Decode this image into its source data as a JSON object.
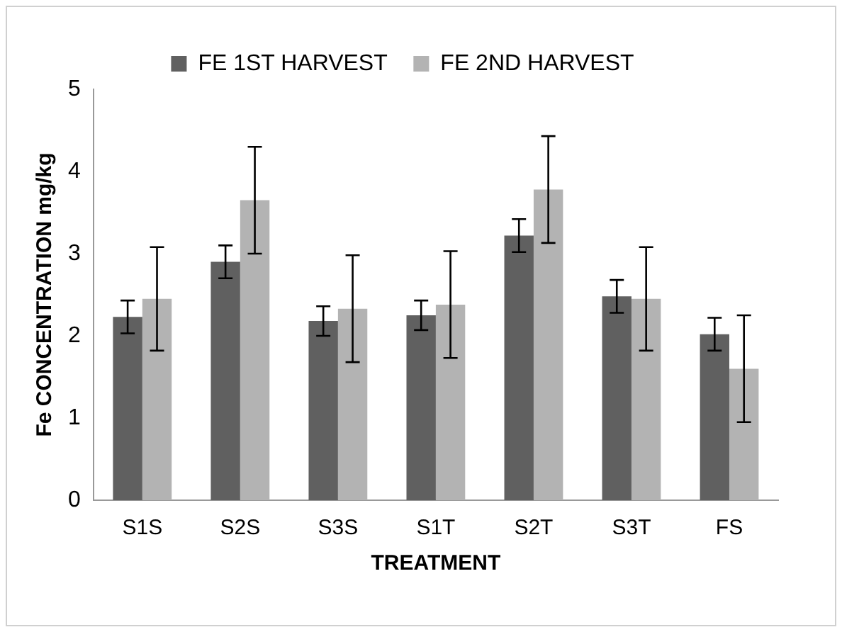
{
  "chart_data": {
    "type": "bar",
    "xlabel": "TREATMENT",
    "ylabel": "Fe CONCENTRATION mg/kg",
    "categories": [
      "S1S",
      "S2S",
      "S3S",
      "S1T",
      "S2T",
      "S3T",
      "FS"
    ],
    "series": [
      {
        "name": "FE 1ST HARVEST",
        "color": "#606060",
        "values": [
          2.23,
          2.9,
          2.18,
          2.25,
          3.22,
          2.48,
          2.02
        ],
        "errors": [
          0.2,
          0.2,
          0.18,
          0.18,
          0.2,
          0.2,
          0.2
        ]
      },
      {
        "name": "FE 2ND HARVEST",
        "color": "#b3b3b3",
        "values": [
          2.45,
          3.65,
          2.33,
          2.38,
          3.78,
          2.45,
          1.6
        ],
        "errors": [
          0.63,
          0.65,
          0.65,
          0.65,
          0.65,
          0.63,
          0.65
        ]
      }
    ],
    "ylim": [
      0,
      5
    ],
    "yticks": [
      0,
      1,
      2,
      3,
      4,
      5
    ],
    "grid": false,
    "legend": "top"
  }
}
